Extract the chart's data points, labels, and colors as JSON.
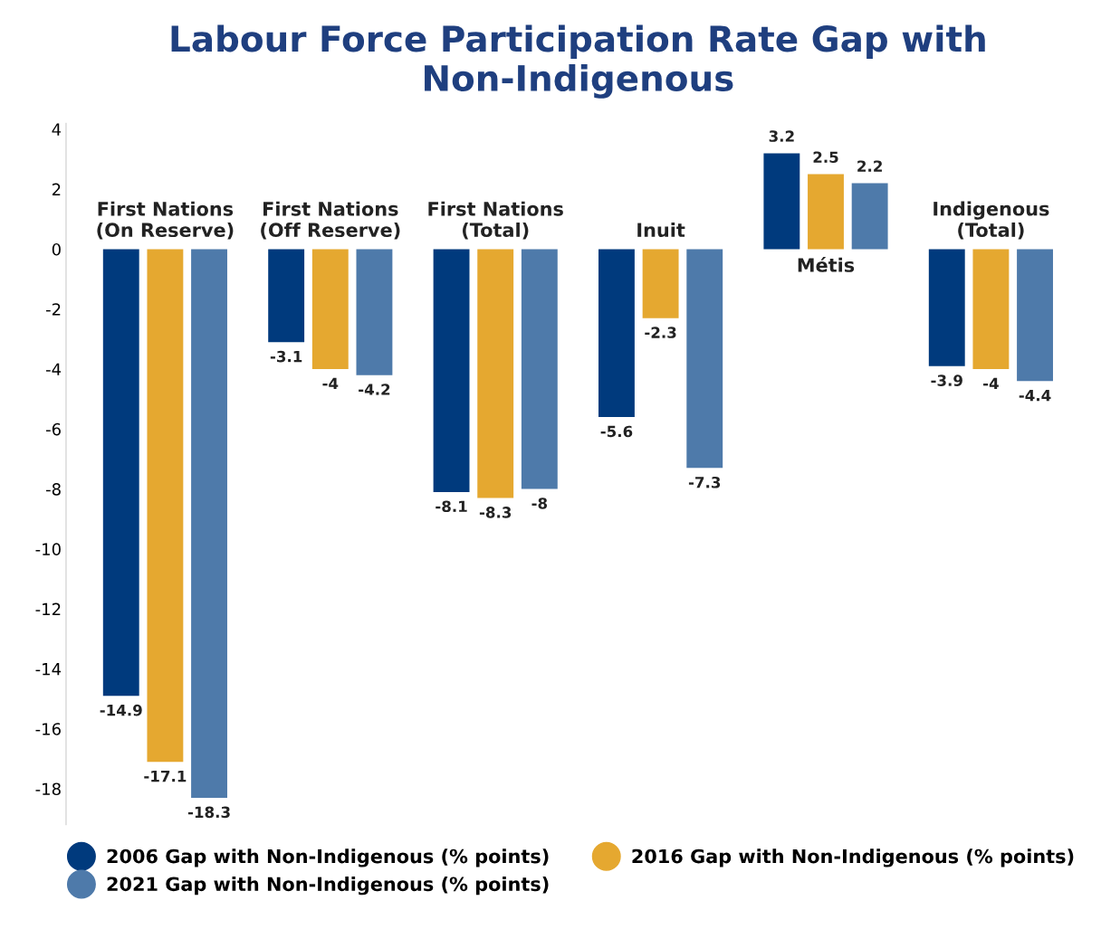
{
  "chart_data": {
    "type": "bar",
    "title": "Labour Force Participation Rate Gap with Non-Indigenous",
    "categories": [
      "First Nations\n(On Reserve)",
      "First Nations\n(Off Reserve)",
      "First Nations\n(Total)",
      "Inuit",
      "Métis",
      "Indigenous\n(Total)"
    ],
    "series": [
      {
        "name": "2006 Gap with Non-Indigenous (% points)",
        "color": "#003a7d",
        "values": [
          -14.9,
          -3.1,
          -8.1,
          -5.6,
          3.2,
          -3.9
        ]
      },
      {
        "name": "2016 Gap with Non-Indigenous (% points)",
        "color": "#e5a830",
        "values": [
          -17.1,
          -4,
          -8.3,
          -2.3,
          2.5,
          -4
        ]
      },
      {
        "name": "2021 Gap with Non-Indigenous (% points)",
        "color": "#4e7aaa",
        "values": [
          -18.3,
          -4.2,
          -8,
          -7.3,
          2.2,
          -4.4
        ]
      }
    ],
    "ylim": [
      -19.2,
      4.2
    ],
    "yticks": [
      4,
      2,
      0,
      -2,
      -4,
      -6,
      -8,
      -10,
      -12,
      -14,
      -16,
      -18
    ],
    "data_labels": true,
    "legend": "bottom",
    "grid": false
  }
}
